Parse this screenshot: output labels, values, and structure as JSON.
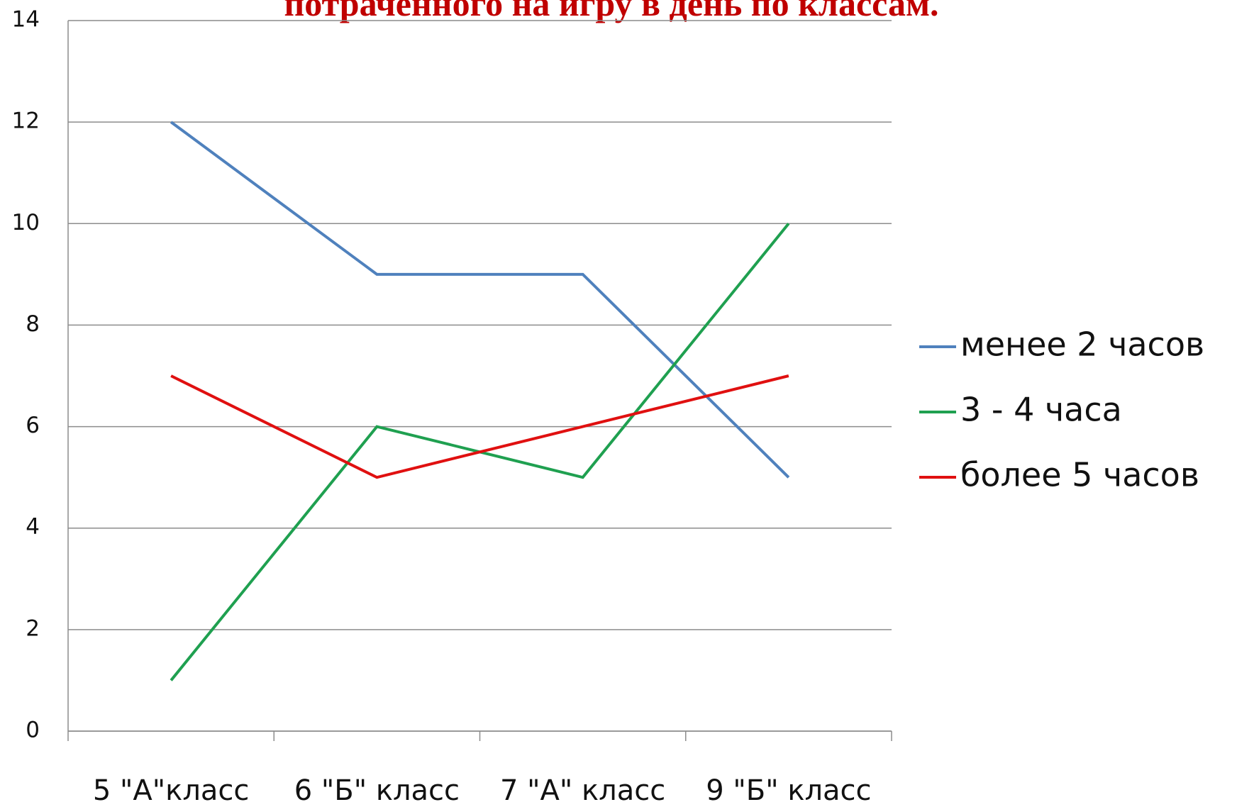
{
  "chart_data": {
    "type": "line",
    "title": "потраченного на игру в день  по классам.",
    "categories": [
      "5 \"А\"класс",
      "6 \"Б\" класс",
      "7 \"А\" класс",
      "9 \"Б\" класс"
    ],
    "series": [
      {
        "name": "менее 2 часов",
        "color": "#4f81bd",
        "values": [
          12,
          9,
          9,
          5
        ]
      },
      {
        "name": "3 - 4 часа",
        "color": "#1fa050",
        "values": [
          1,
          6,
          5,
          10
        ]
      },
      {
        "name": "более 5 часов",
        "color": "#e01010",
        "values": [
          7,
          5,
          6,
          7
        ]
      }
    ],
    "ylim": [
      0,
      14
    ],
    "yticks": [
      0,
      2,
      4,
      6,
      8,
      10,
      12,
      14
    ],
    "grid": true,
    "legend": "right"
  }
}
